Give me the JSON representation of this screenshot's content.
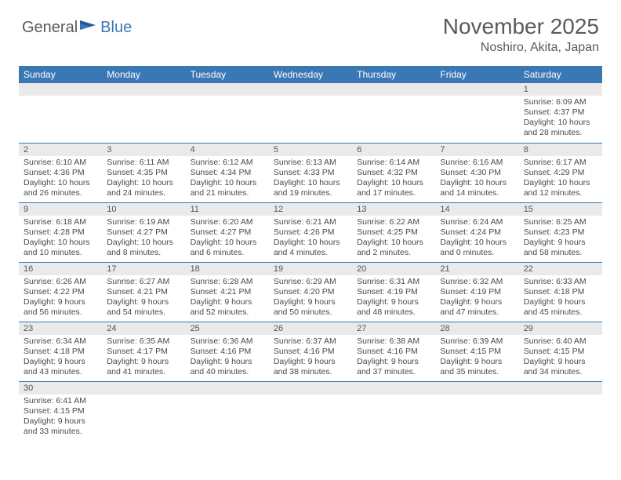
{
  "brand": {
    "part1": "General",
    "part2": "Blue"
  },
  "title": "November 2025",
  "location": "Noshiro, Akita, Japan",
  "colors": {
    "header_bg": "#3a77b5",
    "header_text": "#ffffff",
    "daynum_bg": "#eaeaea",
    "border": "#3a77b5",
    "title_color": "#5a5a5a",
    "body_text": "#4a4a4a"
  },
  "weekdays": [
    "Sunday",
    "Monday",
    "Tuesday",
    "Wednesday",
    "Thursday",
    "Friday",
    "Saturday"
  ],
  "weeks": [
    [
      null,
      null,
      null,
      null,
      null,
      null,
      {
        "n": "1",
        "sunrise": "Sunrise: 6:09 AM",
        "sunset": "Sunset: 4:37 PM",
        "daylight": "Daylight: 10 hours and 28 minutes."
      }
    ],
    [
      {
        "n": "2",
        "sunrise": "Sunrise: 6:10 AM",
        "sunset": "Sunset: 4:36 PM",
        "daylight": "Daylight: 10 hours and 26 minutes."
      },
      {
        "n": "3",
        "sunrise": "Sunrise: 6:11 AM",
        "sunset": "Sunset: 4:35 PM",
        "daylight": "Daylight: 10 hours and 24 minutes."
      },
      {
        "n": "4",
        "sunrise": "Sunrise: 6:12 AM",
        "sunset": "Sunset: 4:34 PM",
        "daylight": "Daylight: 10 hours and 21 minutes."
      },
      {
        "n": "5",
        "sunrise": "Sunrise: 6:13 AM",
        "sunset": "Sunset: 4:33 PM",
        "daylight": "Daylight: 10 hours and 19 minutes."
      },
      {
        "n": "6",
        "sunrise": "Sunrise: 6:14 AM",
        "sunset": "Sunset: 4:32 PM",
        "daylight": "Daylight: 10 hours and 17 minutes."
      },
      {
        "n": "7",
        "sunrise": "Sunrise: 6:16 AM",
        "sunset": "Sunset: 4:30 PM",
        "daylight": "Daylight: 10 hours and 14 minutes."
      },
      {
        "n": "8",
        "sunrise": "Sunrise: 6:17 AM",
        "sunset": "Sunset: 4:29 PM",
        "daylight": "Daylight: 10 hours and 12 minutes."
      }
    ],
    [
      {
        "n": "9",
        "sunrise": "Sunrise: 6:18 AM",
        "sunset": "Sunset: 4:28 PM",
        "daylight": "Daylight: 10 hours and 10 minutes."
      },
      {
        "n": "10",
        "sunrise": "Sunrise: 6:19 AM",
        "sunset": "Sunset: 4:27 PM",
        "daylight": "Daylight: 10 hours and 8 minutes."
      },
      {
        "n": "11",
        "sunrise": "Sunrise: 6:20 AM",
        "sunset": "Sunset: 4:27 PM",
        "daylight": "Daylight: 10 hours and 6 minutes."
      },
      {
        "n": "12",
        "sunrise": "Sunrise: 6:21 AM",
        "sunset": "Sunset: 4:26 PM",
        "daylight": "Daylight: 10 hours and 4 minutes."
      },
      {
        "n": "13",
        "sunrise": "Sunrise: 6:22 AM",
        "sunset": "Sunset: 4:25 PM",
        "daylight": "Daylight: 10 hours and 2 minutes."
      },
      {
        "n": "14",
        "sunrise": "Sunrise: 6:24 AM",
        "sunset": "Sunset: 4:24 PM",
        "daylight": "Daylight: 10 hours and 0 minutes."
      },
      {
        "n": "15",
        "sunrise": "Sunrise: 6:25 AM",
        "sunset": "Sunset: 4:23 PM",
        "daylight": "Daylight: 9 hours and 58 minutes."
      }
    ],
    [
      {
        "n": "16",
        "sunrise": "Sunrise: 6:26 AM",
        "sunset": "Sunset: 4:22 PM",
        "daylight": "Daylight: 9 hours and 56 minutes."
      },
      {
        "n": "17",
        "sunrise": "Sunrise: 6:27 AM",
        "sunset": "Sunset: 4:21 PM",
        "daylight": "Daylight: 9 hours and 54 minutes."
      },
      {
        "n": "18",
        "sunrise": "Sunrise: 6:28 AM",
        "sunset": "Sunset: 4:21 PM",
        "daylight": "Daylight: 9 hours and 52 minutes."
      },
      {
        "n": "19",
        "sunrise": "Sunrise: 6:29 AM",
        "sunset": "Sunset: 4:20 PM",
        "daylight": "Daylight: 9 hours and 50 minutes."
      },
      {
        "n": "20",
        "sunrise": "Sunrise: 6:31 AM",
        "sunset": "Sunset: 4:19 PM",
        "daylight": "Daylight: 9 hours and 48 minutes."
      },
      {
        "n": "21",
        "sunrise": "Sunrise: 6:32 AM",
        "sunset": "Sunset: 4:19 PM",
        "daylight": "Daylight: 9 hours and 47 minutes."
      },
      {
        "n": "22",
        "sunrise": "Sunrise: 6:33 AM",
        "sunset": "Sunset: 4:18 PM",
        "daylight": "Daylight: 9 hours and 45 minutes."
      }
    ],
    [
      {
        "n": "23",
        "sunrise": "Sunrise: 6:34 AM",
        "sunset": "Sunset: 4:18 PM",
        "daylight": "Daylight: 9 hours and 43 minutes."
      },
      {
        "n": "24",
        "sunrise": "Sunrise: 6:35 AM",
        "sunset": "Sunset: 4:17 PM",
        "daylight": "Daylight: 9 hours and 41 minutes."
      },
      {
        "n": "25",
        "sunrise": "Sunrise: 6:36 AM",
        "sunset": "Sunset: 4:16 PM",
        "daylight": "Daylight: 9 hours and 40 minutes."
      },
      {
        "n": "26",
        "sunrise": "Sunrise: 6:37 AM",
        "sunset": "Sunset: 4:16 PM",
        "daylight": "Daylight: 9 hours and 38 minutes."
      },
      {
        "n": "27",
        "sunrise": "Sunrise: 6:38 AM",
        "sunset": "Sunset: 4:16 PM",
        "daylight": "Daylight: 9 hours and 37 minutes."
      },
      {
        "n": "28",
        "sunrise": "Sunrise: 6:39 AM",
        "sunset": "Sunset: 4:15 PM",
        "daylight": "Daylight: 9 hours and 35 minutes."
      },
      {
        "n": "29",
        "sunrise": "Sunrise: 6:40 AM",
        "sunset": "Sunset: 4:15 PM",
        "daylight": "Daylight: 9 hours and 34 minutes."
      }
    ],
    [
      {
        "n": "30",
        "sunrise": "Sunrise: 6:41 AM",
        "sunset": "Sunset: 4:15 PM",
        "daylight": "Daylight: 9 hours and 33 minutes."
      },
      null,
      null,
      null,
      null,
      null,
      null
    ]
  ]
}
